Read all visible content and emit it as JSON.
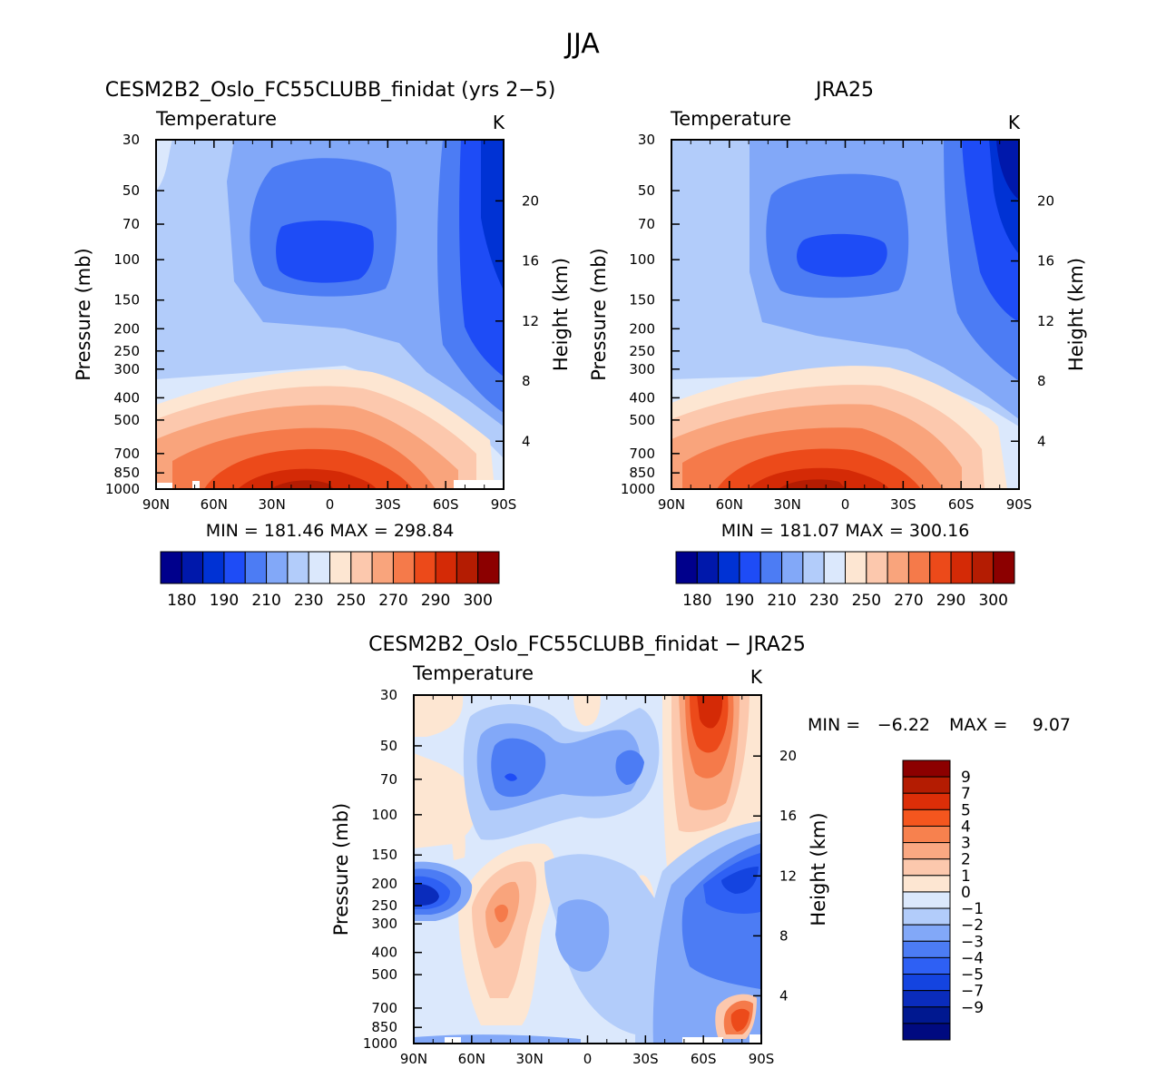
{
  "page_title": "JJA",
  "panels": {
    "model": {
      "title": "CESM2B2_Oslo_FC55CLUBB_finidat (yrs 2−5)",
      "variable": "Temperature",
      "units": "K",
      "ylabel_left": "Pressure (mb)",
      "ylabel_right": "Height (km)",
      "minmax": "MIN = 181.46   MAX = 298.84"
    },
    "obs": {
      "title": "JRA25",
      "variable": "Temperature",
      "units": "K",
      "ylabel_left": "Pressure (mb)",
      "ylabel_right": "Height (km)",
      "minmax": "MIN = 181.07   MAX = 300.16"
    },
    "diff": {
      "title": "CESM2B2_Oslo_FC55CLUBB_finidat − JRA25",
      "variable": "Temperature",
      "units": "K",
      "ylabel_left": "Pressure (mb)",
      "ylabel_right": "Height (km)",
      "min_label": "MIN =",
      "min_value": "−6.22",
      "max_label": "MAX =",
      "max_value": "9.07"
    }
  },
  "chart_data": [
    {
      "type": "heatmap",
      "id": "model",
      "title": "CESM2B2_Oslo_FC55CLUBB_finidat (yrs 2-5)",
      "subtitle": "Temperature",
      "xlabel": "",
      "ylabel": "Pressure (mb)",
      "ylabel_right": "Height (km)",
      "x_ticks": [
        "90N",
        "60N",
        "30N",
        "0",
        "30S",
        "60S",
        "90S"
      ],
      "pressure_ticks": [
        "30",
        "50",
        "70",
        "100",
        "150",
        "200",
        "250",
        "300",
        "400",
        "500",
        "700",
        "850",
        "1000"
      ],
      "height_ticks": [
        "4",
        "8",
        "12",
        "16",
        "20"
      ],
      "min": 181.46,
      "max": 298.84,
      "colorbar_labels": [
        "180",
        "190",
        "210",
        "230",
        "250",
        "270",
        "290",
        "300"
      ]
    },
    {
      "type": "heatmap",
      "id": "obs",
      "title": "JRA25",
      "subtitle": "Temperature",
      "xlabel": "",
      "ylabel": "Pressure (mb)",
      "ylabel_right": "Height (km)",
      "x_ticks": [
        "90N",
        "60N",
        "30N",
        "0",
        "30S",
        "60S",
        "90S"
      ],
      "pressure_ticks": [
        "30",
        "50",
        "70",
        "100",
        "150",
        "200",
        "250",
        "300",
        "400",
        "500",
        "700",
        "850",
        "1000"
      ],
      "height_ticks": [
        "4",
        "8",
        "12",
        "16",
        "20"
      ],
      "min": 181.07,
      "max": 300.16,
      "colorbar_labels": [
        "180",
        "190",
        "210",
        "230",
        "250",
        "270",
        "290",
        "300"
      ]
    },
    {
      "type": "heatmap",
      "id": "diff",
      "title": "CESM2B2_Oslo_FC55CLUBB_finidat - JRA25",
      "subtitle": "Temperature",
      "xlabel": "",
      "ylabel": "Pressure (mb)",
      "ylabel_right": "Height (km)",
      "x_ticks": [
        "90N",
        "60N",
        "30N",
        "0",
        "30S",
        "60S",
        "90S"
      ],
      "pressure_ticks": [
        "30",
        "50",
        "70",
        "100",
        "150",
        "200",
        "250",
        "300",
        "400",
        "500",
        "700",
        "850",
        "1000"
      ],
      "height_ticks": [
        "4",
        "8",
        "12",
        "16",
        "20"
      ],
      "min": -6.22,
      "max": 9.07,
      "colorbar_labels": [
        "9",
        "7",
        "5",
        "4",
        "3",
        "2",
        "1",
        "0",
        "−1",
        "−2",
        "−3",
        "−4",
        "−5",
        "−7",
        "−9"
      ]
    }
  ],
  "colors": {
    "abs_scale": [
      "#00008c",
      "#0018ab",
      "#0032d4",
      "#1e4cf6",
      "#4c7cf4",
      "#82a8f8",
      "#b2ccfa",
      "#dbe8fc",
      "#fde6d2",
      "#fcc8ad",
      "#f9a47c",
      "#f57a4a",
      "#ec4a1a",
      "#d42a06",
      "#b41c02",
      "#8c0000"
    ],
    "diff_scale": [
      "#8c0000",
      "#b41c02",
      "#dc2e08",
      "#f4561e",
      "#f7814e",
      "#faa882",
      "#fcc8ad",
      "#fde6d2",
      "#dbe8fc",
      "#b2ccfa",
      "#82a8f8",
      "#4c7cf4",
      "#2e60f4",
      "#1444e0",
      "#0a2cbc",
      "#001890",
      "#000a80"
    ]
  }
}
